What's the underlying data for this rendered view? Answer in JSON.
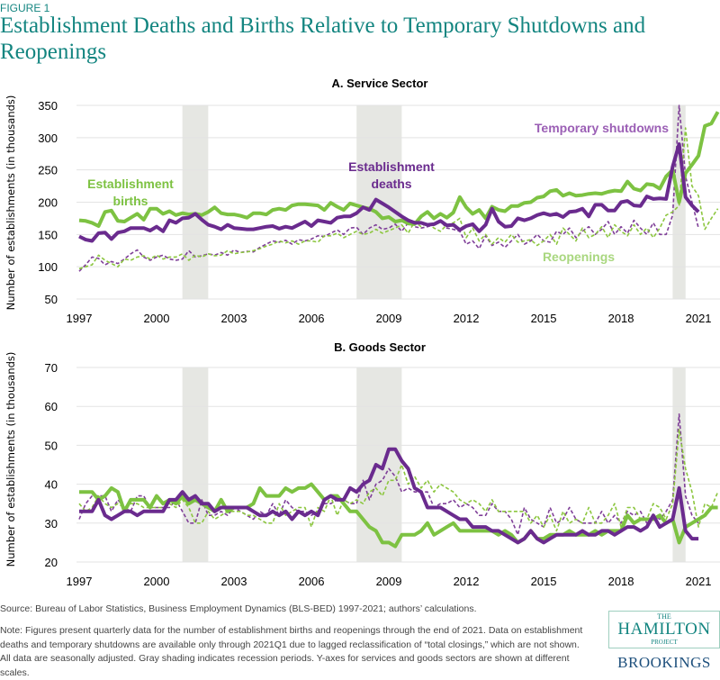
{
  "figure_label": "FIGURE 1",
  "title": "Establishment Deaths and Births Relative to Temporary Shutdowns and Reopenings",
  "source": "Source: Bureau of Labor Statistics, Business Employment Dynamics (BLS-BED) 1997-2021; authors’ calculations.",
  "note": "Note: Figures present quarterly data for the number of establishment births and reopenings through the end of 2021. Data on establishment deaths and temporary shutdowns are available only through 2021Q1 due to lagged reclassification of “total closings,” which are not shown. All data are seasonally adjusted. Gray shading indicates recession periods. Y-axes for services and goods sectors are shown at different scales.",
  "logo": {
    "the": "THE",
    "hamilton": "HAMILTON",
    "project": "PROJECT",
    "brookings": "BROOKINGS"
  },
  "colors": {
    "births": "#7dc242",
    "deaths": "#6a2b8e",
    "shutdowns": "#7f3f98",
    "reopenings": "#8cc63f",
    "title": "#138580",
    "recession": "#e6e7e3"
  },
  "chart_data": [
    {
      "type": "line",
      "title": "A. Service Sector",
      "ylabel": "Number of establishments (in thousands)",
      "ylim": [
        50,
        350
      ],
      "yticks": [
        "50",
        "100",
        "150",
        "200",
        "250",
        "300",
        "350"
      ],
      "xticks": [
        "1997",
        "2000",
        "2003",
        "2006",
        "2009",
        "2012",
        "2015",
        "2018",
        "2021"
      ],
      "x_start": "1997Q1",
      "frequency": "quarterly",
      "grid": true,
      "recessions": [
        [
          "2001Q1",
          "2001Q4"
        ],
        [
          "2007Q4",
          "2009Q2"
        ],
        [
          "2020Q1",
          "2020Q2"
        ]
      ],
      "series": [
        {
          "name": "Establishment births",
          "style": "solid",
          "color": "#7dc242",
          "values": [
            172,
            171,
            168,
            163,
            185,
            187,
            171,
            170,
            176,
            182,
            173,
            190,
            190,
            182,
            186,
            180,
            183,
            181,
            182,
            180,
            185,
            192,
            183,
            181,
            181,
            179,
            176,
            183,
            183,
            181,
            188,
            190,
            188,
            195,
            197,
            197,
            196,
            195,
            188,
            199,
            193,
            188,
            198,
            195,
            192,
            190,
            185,
            175,
            177,
            170,
            172,
            167,
            166,
            178,
            185,
            175,
            182,
            176,
            184,
            208,
            192,
            182,
            188,
            175,
            193,
            188,
            186,
            194,
            194,
            199,
            200,
            207,
            209,
            217,
            219,
            210,
            214,
            210,
            211,
            213,
            214,
            213,
            216,
            218,
            217,
            232,
            221,
            218,
            228,
            227,
            221,
            240,
            250,
            200,
            245,
            258,
            272,
            318,
            322,
            340
          ]
        },
        {
          "name": "Establishment deaths",
          "style": "solid",
          "color": "#6a2b8e",
          "values": [
            147,
            142,
            140,
            152,
            153,
            143,
            153,
            155,
            160,
            160,
            160,
            156,
            162,
            155,
            172,
            168,
            175,
            176,
            182,
            173,
            165,
            162,
            158,
            165,
            160,
            159,
            158,
            158,
            160,
            162,
            163,
            159,
            162,
            160,
            165,
            170,
            163,
            172,
            170,
            168,
            176,
            178,
            178,
            183,
            192,
            188,
            204,
            198,
            192,
            185,
            178,
            172,
            168,
            168,
            165,
            166,
            171,
            164,
            165,
            157,
            163,
            166,
            155,
            165,
            190,
            170,
            162,
            163,
            175,
            172,
            175,
            180,
            183,
            180,
            182,
            177,
            185,
            186,
            190,
            178,
            196,
            196,
            187,
            187,
            200,
            202,
            195,
            194,
            209,
            205,
            206,
            205,
            255,
            290,
            208,
            195,
            185
          ]
        },
        {
          "name": "Temporary shutdowns",
          "style": "dashed",
          "color": "#7f3f98",
          "values": [
            93,
            103,
            115,
            113,
            103,
            108,
            105,
            112,
            120,
            126,
            115,
            110,
            115,
            118,
            112,
            110,
            112,
            125,
            115,
            117,
            120,
            118,
            122,
            118,
            126,
            122,
            124,
            123,
            130,
            135,
            140,
            138,
            141,
            135,
            142,
            140,
            143,
            148,
            147,
            152,
            157,
            150,
            160,
            161,
            150,
            160,
            165,
            158,
            160,
            166,
            155,
            168,
            162,
            160,
            162,
            165,
            170,
            160,
            158,
            155,
            135,
            140,
            128,
            148,
            133,
            138,
            130,
            140,
            150,
            135,
            140,
            150,
            140,
            138,
            155,
            150,
            160,
            145,
            155,
            162,
            150,
            158,
            170,
            150,
            162,
            152,
            172,
            160,
            150,
            168,
            150,
            150,
            180,
            350,
            240,
            200,
            160
          ]
        },
        {
          "name": "Reopenings",
          "style": "dashed",
          "color": "#8cc63f",
          "values": [
            97,
            100,
            103,
            118,
            110,
            105,
            100,
            112,
            110,
            115,
            117,
            112,
            118,
            112,
            115,
            115,
            120,
            110,
            118,
            115,
            120,
            117,
            118,
            125,
            120,
            122,
            123,
            125,
            128,
            132,
            135,
            140,
            137,
            140,
            135,
            140,
            140,
            138,
            148,
            148,
            152,
            145,
            150,
            155,
            150,
            152,
            158,
            152,
            156,
            160,
            165,
            152,
            170,
            162,
            168,
            160,
            155,
            165,
            168,
            175,
            145,
            160,
            140,
            150,
            135,
            145,
            138,
            150,
            138,
            140,
            142,
            133,
            140,
            150,
            135,
            160,
            150,
            140,
            160,
            145,
            150,
            162,
            145,
            165,
            155,
            148,
            165,
            150,
            160,
            145,
            160,
            180,
            185,
            195,
            315,
            225,
            210,
            158,
            175,
            190
          ]
        }
      ]
    },
    {
      "type": "line",
      "title": "B. Goods Sector",
      "ylabel": "Number of establishments (in thousands)",
      "ylim": [
        20,
        70
      ],
      "yticks": [
        "20",
        "30",
        "40",
        "50",
        "60",
        "70"
      ],
      "xticks": [
        "1997",
        "2000",
        "2003",
        "2006",
        "2009",
        "2012",
        "2015",
        "2018",
        "2021"
      ],
      "x_start": "1997Q1",
      "frequency": "quarterly",
      "grid": true,
      "recessions": [
        [
          "2001Q1",
          "2001Q4"
        ],
        [
          "2007Q4",
          "2009Q2"
        ],
        [
          "2020Q1",
          "2020Q2"
        ]
      ],
      "series": [
        {
          "name": "Establishment births",
          "style": "solid",
          "color": "#7dc242",
          "values": [
            38,
            38,
            38,
            36,
            37,
            39,
            38,
            33,
            36,
            36,
            36,
            34,
            37,
            35,
            36,
            35,
            37,
            35,
            36,
            35,
            34,
            33,
            36,
            33,
            34,
            34,
            34,
            35,
            39,
            37,
            37,
            37,
            39,
            38,
            39,
            39,
            40,
            38,
            36,
            37,
            37,
            35,
            33,
            33,
            31,
            29,
            28,
            25,
            25,
            24,
            27,
            27,
            27,
            28,
            30,
            27,
            28,
            29,
            30,
            28,
            28,
            28,
            28,
            28,
            28,
            27,
            28,
            27,
            25,
            26,
            28,
            26,
            26,
            27,
            27,
            27,
            28,
            27,
            27,
            27,
            28,
            27,
            28,
            28,
            28,
            32,
            30,
            31,
            31,
            31,
            32,
            30,
            31,
            25,
            29,
            30,
            31,
            32,
            34,
            34
          ]
        },
        {
          "name": "Establishment deaths",
          "style": "solid",
          "color": "#6a2b8e",
          "values": [
            33,
            33,
            33,
            36,
            32,
            31,
            32,
            33,
            33,
            32,
            33,
            33,
            33,
            33,
            36,
            36,
            38,
            36,
            37,
            35,
            35,
            33,
            34,
            34,
            34,
            34,
            34,
            33,
            32,
            32,
            33,
            32,
            33,
            31,
            33,
            32,
            33,
            32,
            36,
            37,
            36,
            36,
            39,
            38,
            40,
            41,
            45,
            44,
            49,
            49,
            46,
            44,
            39,
            38,
            34,
            34,
            34,
            33,
            32,
            31,
            31,
            29,
            29,
            29,
            28,
            28,
            27,
            26,
            25,
            26,
            28,
            26,
            25,
            26,
            27,
            27,
            27,
            27,
            28,
            27,
            27,
            28,
            28,
            27,
            28,
            29,
            29,
            28,
            29,
            32,
            29,
            30,
            31,
            39,
            28,
            26,
            26
          ]
        },
        {
          "name": "Temporary shutdowns",
          "style": "dashed",
          "color": "#7f3f98",
          "values": [
            31,
            35,
            37,
            37,
            37,
            33,
            36,
            34,
            33,
            37,
            37,
            34,
            34,
            34,
            34,
            36,
            33,
            30,
            30,
            36,
            32,
            32,
            33,
            32,
            34,
            33,
            32,
            31,
            33,
            32,
            35,
            32,
            36,
            34,
            33,
            33,
            32,
            33,
            35,
            35,
            36,
            36,
            35,
            35,
            41,
            36,
            40,
            41,
            44,
            42,
            38,
            39,
            38,
            38,
            38,
            34,
            35,
            35,
            36,
            34,
            35,
            34,
            32,
            32,
            35,
            33,
            33,
            31,
            27,
            34,
            31,
            30,
            29,
            34,
            30,
            31,
            34,
            31,
            30,
            30,
            30,
            33,
            30,
            32,
            30,
            33,
            32,
            33,
            30,
            32,
            31,
            33,
            36,
            58,
            37,
            32,
            30
          ]
        },
        {
          "name": "Reopenings",
          "style": "dashed",
          "color": "#8cc63f",
          "values": [
            35,
            33,
            34,
            37,
            35,
            34,
            35,
            34,
            35,
            35,
            34,
            34,
            34,
            34,
            35,
            34,
            36,
            34,
            30,
            30,
            33,
            31,
            32,
            33,
            33,
            33,
            32,
            32,
            31,
            30,
            30,
            35,
            32,
            33,
            34,
            34,
            29,
            34,
            33,
            37,
            32,
            36,
            35,
            36,
            35,
            38,
            39,
            37,
            41,
            41,
            45,
            40,
            42,
            39,
            41,
            38,
            40,
            39,
            38,
            36,
            35,
            36,
            35,
            33,
            36,
            33,
            33,
            33,
            33,
            33,
            30,
            32,
            29,
            32,
            28,
            33,
            30,
            31,
            30,
            34,
            30,
            30,
            32,
            35,
            29,
            34,
            34,
            31,
            31,
            35,
            34,
            31,
            35,
            54,
            44,
            38,
            29,
            35,
            34,
            38
          ]
        }
      ],
      "annotations": []
    }
  ],
  "annotations": {
    "births": [
      "Establishment",
      "births"
    ],
    "deaths": [
      "Establishment",
      "deaths"
    ],
    "shutdowns": "Temporary shutdowns",
    "reopenings": "Reopenings"
  }
}
